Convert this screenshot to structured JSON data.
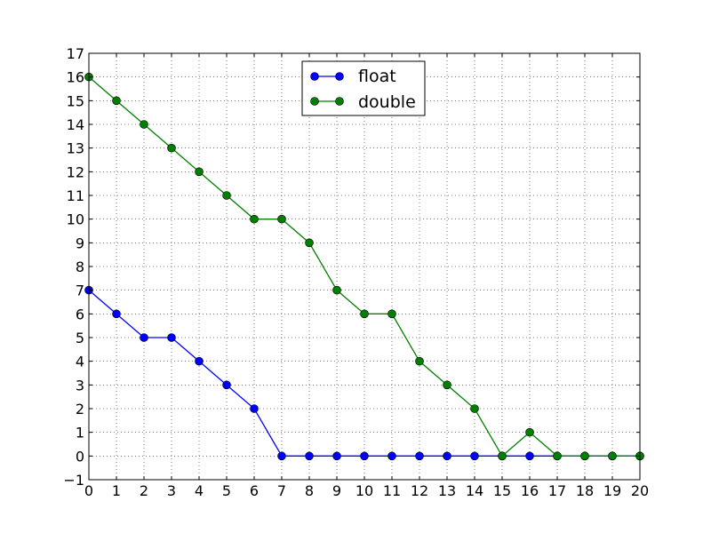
{
  "chart_data": {
    "type": "line",
    "x": [
      0,
      1,
      2,
      3,
      4,
      5,
      6,
      7,
      8,
      9,
      10,
      11,
      12,
      13,
      14,
      15,
      16,
      17,
      18,
      19,
      20
    ],
    "xlim": [
      0,
      20
    ],
    "ylim": [
      -1,
      17
    ],
    "x_ticks": [
      "0",
      "1",
      "2",
      "3",
      "4",
      "5",
      "6",
      "7",
      "8",
      "9",
      "10",
      "11",
      "12",
      "13",
      "14",
      "15",
      "16",
      "17",
      "18",
      "19",
      "20"
    ],
    "y_ticks": [
      "−1",
      "0",
      "1",
      "2",
      "3",
      "4",
      "5",
      "6",
      "7",
      "8",
      "9",
      "10",
      "11",
      "12",
      "13",
      "14",
      "15",
      "16",
      "17"
    ],
    "grid": true,
    "legend_position": "top-center",
    "series": [
      {
        "name": "float",
        "color": "#0000ff",
        "marker": "circle",
        "values": [
          7,
          6,
          5,
          5,
          4,
          3,
          2,
          0,
          0,
          0,
          0,
          0,
          0,
          0,
          0,
          0,
          0,
          0,
          0,
          0,
          0
        ]
      },
      {
        "name": "double",
        "color": "#008000",
        "marker": "circle",
        "values": [
          16,
          15,
          14,
          13,
          12,
          11,
          10,
          10,
          9,
          7,
          6,
          6,
          4,
          3,
          2,
          0,
          1,
          0,
          0,
          0,
          0
        ]
      }
    ]
  }
}
